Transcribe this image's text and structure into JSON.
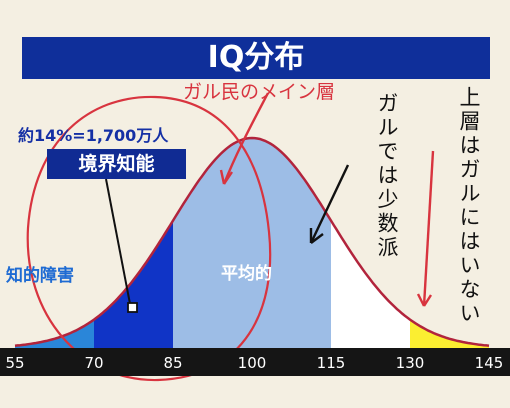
{
  "chart_data": {
    "type": "area",
    "title": "IQ分布",
    "xlabel": "",
    "ylabel": "",
    "x_ticks": [
      55,
      70,
      85,
      100,
      115,
      130,
      145
    ],
    "xlim": [
      55,
      145
    ],
    "distribution": {
      "mean": 100,
      "sd": 15
    },
    "bands": [
      {
        "name": "知的障害",
        "from": 55,
        "to": 70,
        "color": "#2a86d9"
      },
      {
        "name": "境界知能",
        "from": 70,
        "to": 85,
        "color": "#1034c6"
      },
      {
        "name": "平均的",
        "from": 85,
        "to": 115,
        "color": "#9dbde6"
      },
      {
        "name": "",
        "from": 115,
        "to": 130,
        "color": "#ffffff"
      },
      {
        "name": "",
        "from": 130,
        "to": 145,
        "color": "#fbee31"
      }
    ],
    "curve_color": "#b2243c",
    "stat_text": "約14%=1,700万人"
  },
  "annotations": {
    "gal_majority": "ガル民のメイン層",
    "gal_minority": "ガルでは少数派",
    "no_gal_upper": "上層はガルにはいない"
  },
  "colors": {
    "title_bg": "#0f2f9a",
    "annotation_red": "#d8343f",
    "axis_bar": "#151515"
  }
}
